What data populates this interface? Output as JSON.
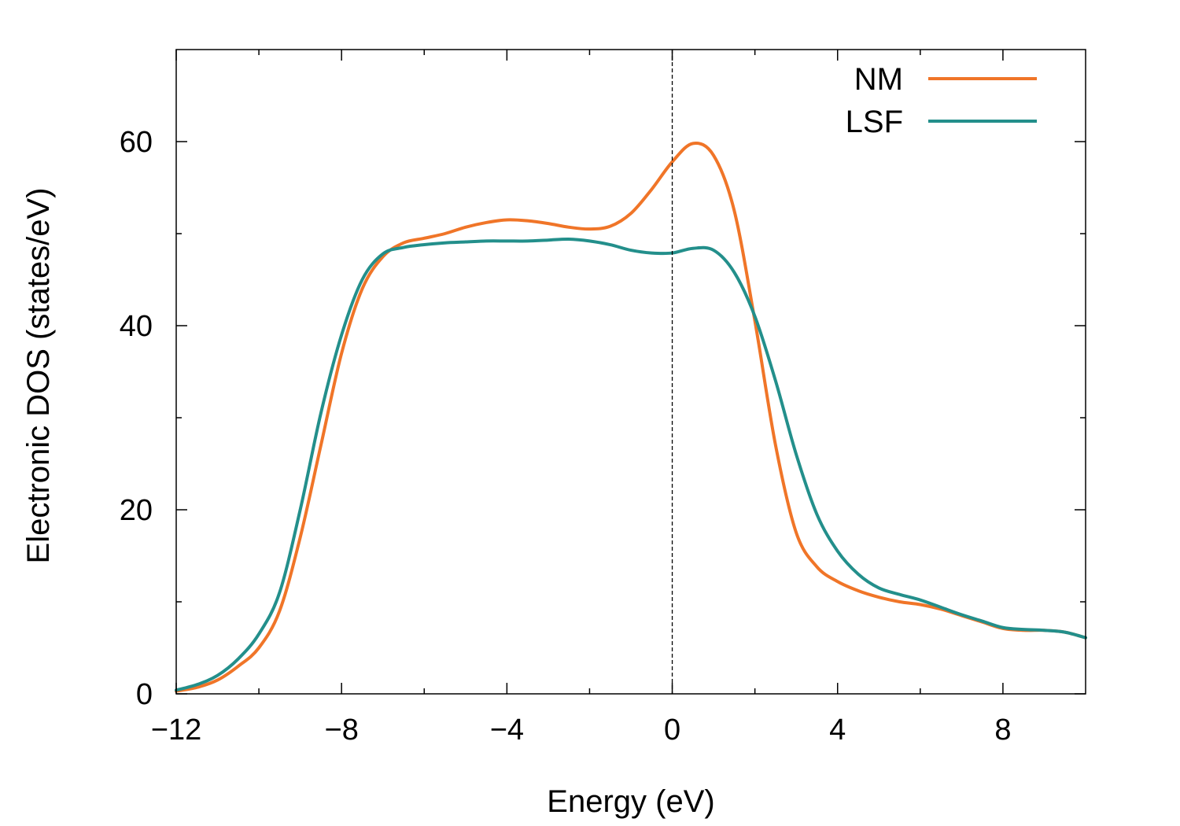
{
  "chart_data": {
    "type": "line",
    "title": "",
    "xlabel": "Energy (eV)",
    "ylabel": "Electronic DOS (states/eV)",
    "xlim": [
      -12,
      10
    ],
    "ylim": [
      0,
      70
    ],
    "x_ticks": [
      -12,
      -8,
      -4,
      0,
      4,
      8
    ],
    "x_tick_labels": [
      "−12",
      "−8",
      "−4",
      "0",
      "4",
      "8"
    ],
    "x_minor_ticks": [
      -10,
      -6,
      -2,
      2,
      6
    ],
    "y_ticks": [
      0,
      20,
      40,
      60
    ],
    "y_tick_labels": [
      "0",
      "20",
      "40",
      "60"
    ],
    "y_minor_ticks": [
      10,
      30,
      50
    ],
    "grid": false,
    "legend_position": "top-right",
    "fermi_line": {
      "x": 0,
      "style": "dashed",
      "color": "#000000"
    },
    "series": [
      {
        "name": "NM",
        "color": "#f07528",
        "points": [
          [
            -12,
            0.3
          ],
          [
            -11.5,
            0.7
          ],
          [
            -11,
            1.5
          ],
          [
            -10.5,
            3
          ],
          [
            -10,
            5
          ],
          [
            -9.5,
            9
          ],
          [
            -9,
            17
          ],
          [
            -8.5,
            27
          ],
          [
            -8,
            37
          ],
          [
            -7.5,
            44
          ],
          [
            -7,
            47.5
          ],
          [
            -6.5,
            49
          ],
          [
            -6,
            49.5
          ],
          [
            -5.5,
            50
          ],
          [
            -5,
            50.7
          ],
          [
            -4.5,
            51.2
          ],
          [
            -4,
            51.5
          ],
          [
            -3.5,
            51.4
          ],
          [
            -3,
            51.1
          ],
          [
            -2.5,
            50.7
          ],
          [
            -2,
            50.5
          ],
          [
            -1.5,
            50.8
          ],
          [
            -1,
            52.2
          ],
          [
            -0.5,
            54.8
          ],
          [
            0,
            57.8
          ],
          [
            0.5,
            59.8
          ],
          [
            1,
            58.5
          ],
          [
            1.5,
            52.5
          ],
          [
            2,
            40.5
          ],
          [
            2.5,
            27
          ],
          [
            3,
            17.5
          ],
          [
            3.5,
            13.8
          ],
          [
            4,
            12.2
          ],
          [
            4.5,
            11.2
          ],
          [
            5,
            10.5
          ],
          [
            5.5,
            10
          ],
          [
            6,
            9.7
          ],
          [
            6.5,
            9.2
          ],
          [
            7,
            8.5
          ],
          [
            7.5,
            7.8
          ],
          [
            8,
            7.1
          ],
          [
            8.5,
            6.9
          ],
          [
            9,
            6.9
          ],
          [
            9.5,
            6.7
          ],
          [
            10,
            6.1
          ]
        ]
      },
      {
        "name": "LSF",
        "color": "#238f8b",
        "points": [
          [
            -12,
            0.4
          ],
          [
            -11.5,
            1
          ],
          [
            -11,
            2
          ],
          [
            -10.5,
            3.8
          ],
          [
            -10,
            6.5
          ],
          [
            -9.5,
            11
          ],
          [
            -9,
            20
          ],
          [
            -8.5,
            30.5
          ],
          [
            -8,
            39
          ],
          [
            -7.5,
            45
          ],
          [
            -7,
            47.8
          ],
          [
            -6.5,
            48.5
          ],
          [
            -6,
            48.8
          ],
          [
            -5.5,
            49
          ],
          [
            -5,
            49.1
          ],
          [
            -4.5,
            49.2
          ],
          [
            -4,
            49.2
          ],
          [
            -3.5,
            49.2
          ],
          [
            -3,
            49.3
          ],
          [
            -2.5,
            49.4
          ],
          [
            -2,
            49.2
          ],
          [
            -1.5,
            48.8
          ],
          [
            -1,
            48.2
          ],
          [
            -0.5,
            47.9
          ],
          [
            0,
            47.9
          ],
          [
            0.5,
            48.4
          ],
          [
            1,
            48.2
          ],
          [
            1.5,
            45.8
          ],
          [
            2,
            41
          ],
          [
            2.5,
            34
          ],
          [
            3,
            26
          ],
          [
            3.5,
            19.5
          ],
          [
            4,
            15.5
          ],
          [
            4.5,
            13
          ],
          [
            5,
            11.5
          ],
          [
            5.5,
            10.8
          ],
          [
            6,
            10.2
          ],
          [
            6.5,
            9.4
          ],
          [
            7,
            8.6
          ],
          [
            7.5,
            7.9
          ],
          [
            8,
            7.2
          ],
          [
            8.5,
            7
          ],
          [
            9,
            6.9
          ],
          [
            9.5,
            6.7
          ],
          [
            10,
            6.1
          ]
        ]
      }
    ]
  }
}
